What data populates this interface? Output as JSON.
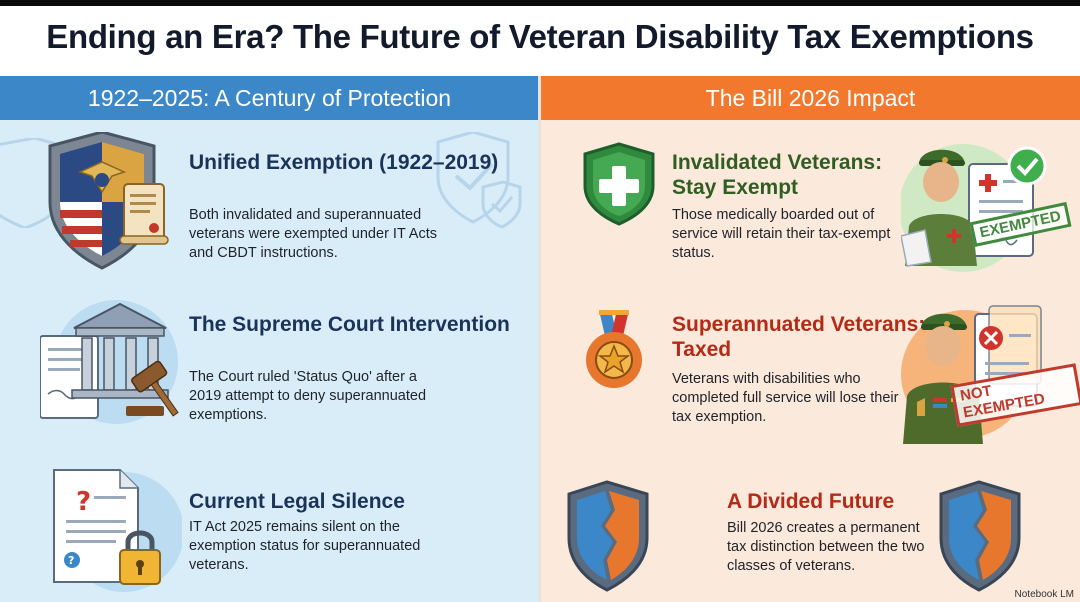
{
  "title": "Ending an Era? The Future of Veteran Disability Tax Exemptions",
  "left": {
    "header": "1922–2025: A Century of Protection",
    "items": [
      {
        "title": "Unified Exemption (1922–2019)",
        "body": "Both invalidated and superannuated veterans were exempted under IT Acts and CBDT instructions."
      },
      {
        "title": "The Supreme Court Intervention",
        "body": "The Court ruled 'Status Quo' after a 2019 attempt to deny superannuated exemptions."
      },
      {
        "title": "Current Legal Silence",
        "body": "IT Act 2025 remains silent on the exemption status for superannuated veterans."
      }
    ]
  },
  "right": {
    "header": "The Bill 2026 Impact",
    "items": [
      {
        "title": "Invalidated Veterans: Stay Exempt",
        "body": "Those medically boarded out of service will retain their tax-exempt status.",
        "stamp": "EXEMPTED"
      },
      {
        "title": "Superannuated Veterans: Taxed",
        "body": "Veterans with disabilities who completed full service will lose their tax exemption.",
        "stamp": "NOT EXEMPTED"
      },
      {
        "title": "A Divided Future",
        "body": "Bill 2026 creates a permanent tax distinction between the two classes of veterans."
      }
    ]
  },
  "credit": "Notebook LM",
  "colors": {
    "left_header": "#3b87c7",
    "right_header": "#f2782e",
    "left_bg": "#d9edf9",
    "right_bg": "#fbe9dc"
  }
}
